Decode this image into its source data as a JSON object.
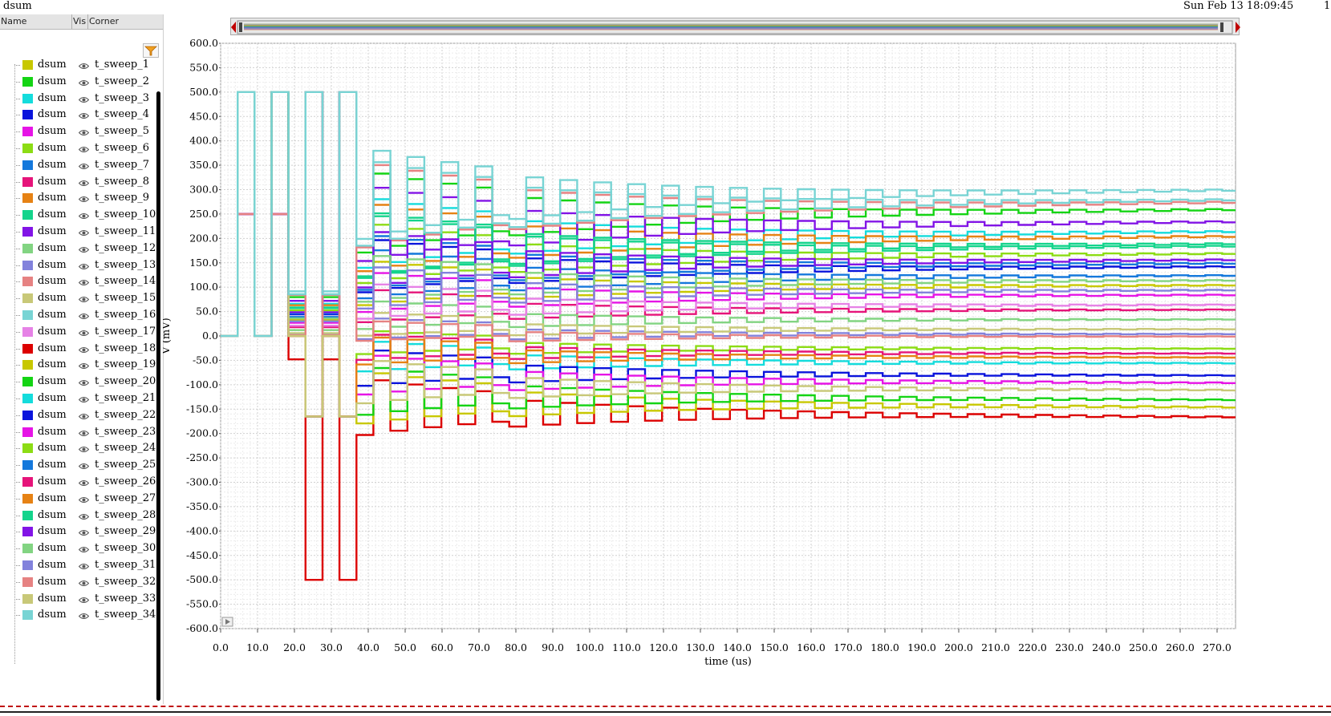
{
  "window": {
    "title": "dsum",
    "datetime": "Sun Feb 13 18:09:45",
    "page_indicator": "1"
  },
  "legend": {
    "columns": [
      "Name",
      "Vis",
      "Corner"
    ],
    "rows": [
      {
        "name": "dsum",
        "corner": "t_sweep_1",
        "color": "#c8c800"
      },
      {
        "name": "dsum",
        "corner": "t_sweep_2",
        "color": "#14d414"
      },
      {
        "name": "dsum",
        "corner": "t_sweep_3",
        "color": "#14dcdc"
      },
      {
        "name": "dsum",
        "corner": "t_sweep_4",
        "color": "#0a14dc"
      },
      {
        "name": "dsum",
        "corner": "t_sweep_5",
        "color": "#e614e6"
      },
      {
        "name": "dsum",
        "corner": "t_sweep_6",
        "color": "#8cdc14"
      },
      {
        "name": "dsum",
        "corner": "t_sweep_7",
        "color": "#1478dc"
      },
      {
        "name": "dsum",
        "corner": "t_sweep_8",
        "color": "#e6147a"
      },
      {
        "name": "dsum",
        "corner": "t_sweep_9",
        "color": "#e68214"
      },
      {
        "name": "dsum",
        "corner": "t_sweep_10",
        "color": "#14d48c"
      },
      {
        "name": "dsum",
        "corner": "t_sweep_11",
        "color": "#8214e6"
      },
      {
        "name": "dsum",
        "corner": "t_sweep_12",
        "color": "#82d482"
      },
      {
        "name": "dsum",
        "corner": "t_sweep_13",
        "color": "#8282dc"
      },
      {
        "name": "dsum",
        "corner": "t_sweep_14",
        "color": "#e68282"
      },
      {
        "name": "dsum",
        "corner": "t_sweep_15",
        "color": "#c8c878"
      },
      {
        "name": "dsum",
        "corner": "t_sweep_16",
        "color": "#78d4d4"
      },
      {
        "name": "dsum",
        "corner": "t_sweep_17",
        "color": "#e682e6"
      },
      {
        "name": "dsum",
        "corner": "t_sweep_18",
        "color": "#dc0000"
      },
      {
        "name": "dsum",
        "corner": "t_sweep_19",
        "color": "#c8c800"
      },
      {
        "name": "dsum",
        "corner": "t_sweep_20",
        "color": "#14d414"
      },
      {
        "name": "dsum",
        "corner": "t_sweep_21",
        "color": "#14dcdc"
      },
      {
        "name": "dsum",
        "corner": "t_sweep_22",
        "color": "#0a14dc"
      },
      {
        "name": "dsum",
        "corner": "t_sweep_23",
        "color": "#e614e6"
      },
      {
        "name": "dsum",
        "corner": "t_sweep_24",
        "color": "#8cdc14"
      },
      {
        "name": "dsum",
        "corner": "t_sweep_25",
        "color": "#1478dc"
      },
      {
        "name": "dsum",
        "corner": "t_sweep_26",
        "color": "#e6147a"
      },
      {
        "name": "dsum",
        "corner": "t_sweep_27",
        "color": "#e68214"
      },
      {
        "name": "dsum",
        "corner": "t_sweep_28",
        "color": "#14d48c"
      },
      {
        "name": "dsum",
        "corner": "t_sweep_29",
        "color": "#8214e6"
      },
      {
        "name": "dsum",
        "corner": "t_sweep_30",
        "color": "#82d482"
      },
      {
        "name": "dsum",
        "corner": "t_sweep_31",
        "color": "#8282dc"
      },
      {
        "name": "dsum",
        "corner": "t_sweep_32",
        "color": "#e68282"
      },
      {
        "name": "dsum",
        "corner": "t_sweep_33",
        "color": "#c8c878"
      },
      {
        "name": "dsum",
        "corner": "t_sweep_34",
        "color": "#78d4d4"
      }
    ]
  },
  "chart_data": {
    "type": "line",
    "title": "",
    "xlabel": "time (us)",
    "ylabel": "V (mV)",
    "xlim": [
      0,
      275
    ],
    "ylim": [
      -600,
      600
    ],
    "xticks": [
      "0.0",
      "10.0",
      "20.0",
      "30.0",
      "40.0",
      "50.0",
      "60.0",
      "70.0",
      "80.0",
      "90.0",
      "100.0",
      "110.0",
      "120.0",
      "130.0",
      "140.0",
      "150.0",
      "160.0",
      "170.0",
      "180.0",
      "190.0",
      "200.0",
      "210.0",
      "220.0",
      "230.0",
      "240.0",
      "250.0",
      "260.0",
      "270.0"
    ],
    "yticks": [
      "600.0",
      "550.0",
      "500.0",
      "450.0",
      "400.0",
      "350.0",
      "300.0",
      "250.0",
      "200.0",
      "150.0",
      "100.0",
      "50.0",
      "0.0",
      "-50.0",
      "-100.0",
      "-150.0",
      "-200.0",
      "-250.0",
      "-300.0",
      "-350.0",
      "-400.0",
      "-450.0",
      "-500.0",
      "-550.0",
      "-600.0"
    ],
    "grid": true,
    "series_final_values": [
      110,
      265,
      220,
      148,
      90,
      175,
      130,
      60,
      210,
      190,
      240,
      40,
      10,
      280,
      20,
      305,
      70,
      -160,
      -140,
      -125,
      -50,
      -75,
      -90,
      -20,
      155,
      -30,
      -38,
      195,
      162,
      120,
      100,
      5,
      -105,
      285
    ],
    "series_final_x": 275,
    "series_peak_region": {
      "x_start": 0,
      "x_end": 40,
      "y_max": 500,
      "y_min": -500
    },
    "step_period_us": 4.6
  }
}
